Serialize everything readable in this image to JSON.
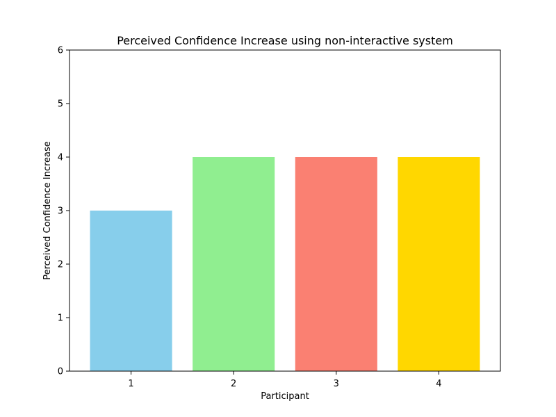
{
  "chart_data": {
    "type": "bar",
    "title": "Perceived Confidence Increase using non-interactive system",
    "xlabel": "Participant",
    "ylabel": "Perceived Confidence Increase",
    "categories": [
      "1",
      "2",
      "3",
      "4"
    ],
    "values": [
      3,
      4,
      4,
      4
    ],
    "colors": [
      "#87CEEB",
      "#90EE90",
      "#FA8072",
      "#FFD700"
    ],
    "ylim": [
      0,
      6
    ],
    "yticks": [
      "0",
      "1",
      "2",
      "3",
      "4",
      "5",
      "6"
    ],
    "grid": false,
    "legend": "none"
  }
}
